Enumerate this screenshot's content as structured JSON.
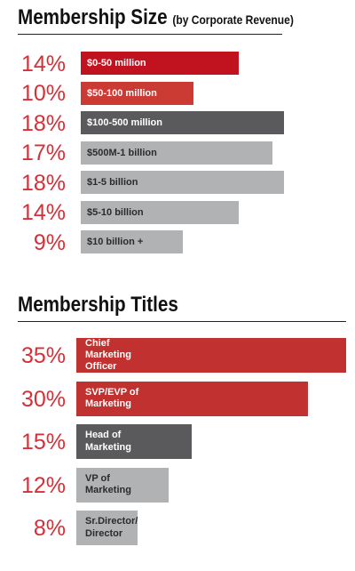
{
  "sections": [
    {
      "title": "Membership Size",
      "subtitle": "(by Corporate Revenue)"
    },
    {
      "title": "Membership Titles",
      "subtitle": ""
    }
  ],
  "chart_data": [
    {
      "type": "bar",
      "orientation": "horizontal",
      "title": "Membership Size (by Corporate Revenue)",
      "categories": [
        "$0-50 million",
        "$50-100 million",
        "$100-500 million",
        "$500M-1 billion",
        "$1-5 billion",
        "$5-10 billion",
        "$10 billion +"
      ],
      "values": [
        14,
        10,
        18,
        17,
        18,
        14,
        9
      ],
      "value_labels": [
        "14%",
        "10%",
        "18%",
        "17%",
        "18%",
        "14%",
        "9%"
      ],
      "colors": [
        "#c1121f",
        "#cc3a34",
        "#5a5a5c",
        "#b1b2b4",
        "#b1b2b4",
        "#b1b2b4",
        "#b1b2b4"
      ],
      "text_colors": [
        "#ffffff",
        "#ffffff",
        "#ffffff",
        "#2b2b2b",
        "#2b2b2b",
        "#2b2b2b",
        "#2b2b2b"
      ],
      "xlim": [
        0,
        18
      ],
      "unit": "%"
    },
    {
      "type": "bar",
      "orientation": "horizontal",
      "title": "Membership Titles",
      "categories": [
        "Chief Marketing Officer",
        "SVP/EVP of Marketing",
        "Head of Marketing",
        "VP of Marketing",
        "Sr.Director/ Director"
      ],
      "values": [
        35,
        30,
        15,
        12,
        8
      ],
      "value_labels": [
        "35%",
        "30%",
        "15%",
        "12%",
        "8%"
      ],
      "colors": [
        "#c1312f",
        "#c1312f",
        "#5a5a5c",
        "#b1b2b4",
        "#b1b2b4"
      ],
      "text_colors": [
        "#ffffff",
        "#ffffff",
        "#ffffff",
        "#2b2b2b",
        "#2b2b2b"
      ],
      "xlim": [
        0,
        35
      ],
      "unit": "%"
    }
  ]
}
